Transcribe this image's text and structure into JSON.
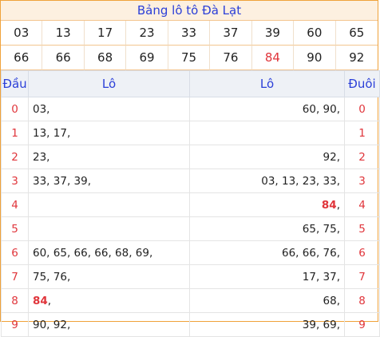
{
  "title": "Bảng lô tô Đà Lạt",
  "numbers": [
    "03",
    "13",
    "17",
    "23",
    "33",
    "37",
    "39",
    "60",
    "65",
    "66",
    "66",
    "68",
    "69",
    "75",
    "76",
    "84",
    "90",
    "92"
  ],
  "highlight_color": "#e0353b",
  "headers": {
    "dau": "Đầu",
    "lo_left": "Lô",
    "lo_right": "Lô",
    "duoi": "Đuôi"
  },
  "rows": [
    {
      "dau": "0",
      "left": "03,",
      "left_hi": "",
      "right": "60, 90,",
      "right_hi": "",
      "duoi": "0"
    },
    {
      "dau": "1",
      "left": "13, 17,",
      "left_hi": "",
      "right": "",
      "right_hi": "",
      "duoi": "1"
    },
    {
      "dau": "2",
      "left": "23,",
      "left_hi": "",
      "right": "92,",
      "right_hi": "",
      "duoi": "2"
    },
    {
      "dau": "3",
      "left": "33, 37, 39,",
      "left_hi": "",
      "right": "03, 13, 23, 33,",
      "right_hi": "",
      "duoi": "3"
    },
    {
      "dau": "4",
      "left": "",
      "left_hi": "",
      "right": ",",
      "right_hi": "84",
      "duoi": "4"
    },
    {
      "dau": "5",
      "left": "",
      "left_hi": "",
      "right": "65, 75,",
      "right_hi": "",
      "duoi": "5"
    },
    {
      "dau": "6",
      "left": "60, 65, 66, 66, 68, 69,",
      "left_hi": "",
      "right": "66, 66, 76,",
      "right_hi": "",
      "duoi": "6"
    },
    {
      "dau": "7",
      "left": "75, 76,",
      "left_hi": "",
      "right": "17, 37,",
      "right_hi": "",
      "duoi": "7"
    },
    {
      "dau": "8",
      "left": ",",
      "left_hi": "84",
      "right": "68,",
      "right_hi": "",
      "duoi": "8"
    },
    {
      "dau": "9",
      "left": "90, 92,",
      "left_hi": "",
      "right": "39, 69,",
      "right_hi": "",
      "duoi": "9"
    }
  ]
}
